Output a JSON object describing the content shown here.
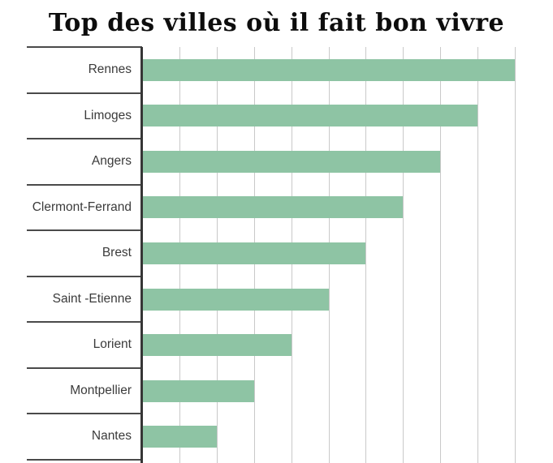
{
  "title": "Top des villes où il fait bon vivre",
  "chart_data": {
    "type": "bar",
    "orientation": "horizontal",
    "title": "Top des villes où il fait bon vivre",
    "categories": [
      "Rennes",
      "Limoges",
      "Angers",
      "Clermont-Ferrand",
      "Brest",
      "Saint -Etienne",
      "Lorient",
      "Montpellier",
      "Nantes"
    ],
    "values": [
      10,
      9,
      8,
      7,
      6,
      5,
      4,
      3,
      2
    ],
    "xlabel": "",
    "ylabel": "",
    "xlim": [
      0,
      11
    ],
    "gridline_interval": 1,
    "grid": true,
    "legend": false,
    "value_labels_shown": false,
    "colors": {
      "bar": "#8ec4a4",
      "gridline": "#c9c9c9",
      "axis_line": "#363636",
      "row_divider": "#4a4a4a",
      "label_text": "#3b3b3b",
      "title_text": "#0d0d0d",
      "background": "#ffffff"
    }
  }
}
